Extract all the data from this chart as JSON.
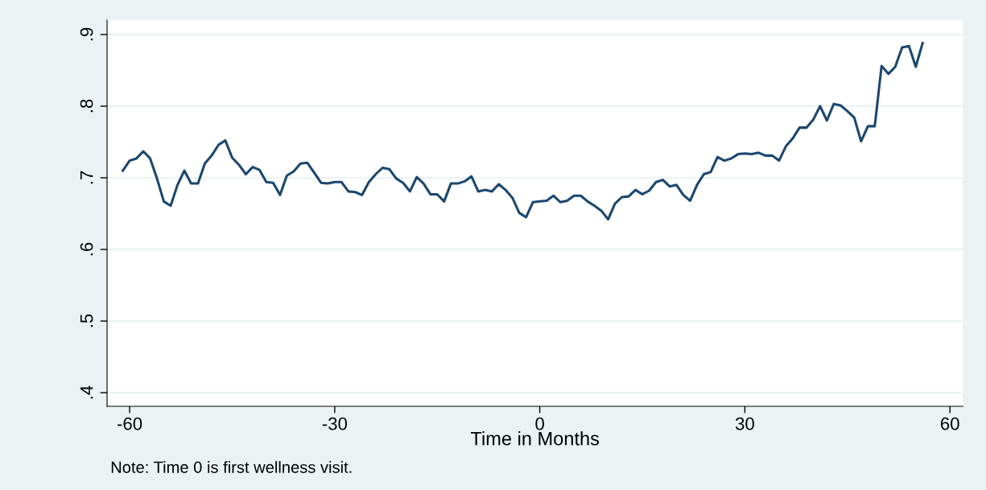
{
  "chart_data": {
    "type": "line",
    "xlabel": "Time in Months",
    "annotations": [
      "Note: Time 0 is first wellness visit."
    ],
    "x": [
      -61,
      -60,
      -59,
      -58,
      -57,
      -56,
      -55,
      -54,
      -53,
      -52,
      -51,
      -50,
      -49,
      -48,
      -47,
      -46,
      -45,
      -44,
      -43,
      -42,
      -41,
      -40,
      -39,
      -38,
      -37,
      -36,
      -35,
      -34,
      -33,
      -32,
      -31,
      -30,
      -29,
      -28,
      -27,
      -26,
      -25,
      -24,
      -23,
      -22,
      -21,
      -20,
      -19,
      -18,
      -17,
      -16,
      -15,
      -14,
      -13,
      -12,
      -11,
      -10,
      -9,
      -8,
      -7,
      -6,
      -5,
      -4,
      -3,
      -2,
      -1,
      0,
      1,
      2,
      3,
      4,
      5,
      6,
      7,
      8,
      9,
      10,
      11,
      12,
      13,
      14,
      15,
      16,
      17,
      18,
      19,
      20,
      21,
      22,
      23,
      24,
      25,
      26,
      27,
      28,
      29,
      30,
      31,
      32,
      33,
      34,
      35,
      36,
      37,
      38,
      39,
      40,
      41,
      42,
      43,
      44,
      45,
      46,
      47,
      48,
      49,
      50,
      51,
      52,
      53,
      54,
      55,
      56
    ],
    "series": [
      {
        "color": "#1a476f",
        "values": [
          0.71,
          0.724,
          0.727,
          0.737,
          0.727,
          0.699,
          0.667,
          0.661,
          0.69,
          0.71,
          0.692,
          0.692,
          0.72,
          0.731,
          0.746,
          0.752,
          0.728,
          0.718,
          0.705,
          0.715,
          0.711,
          0.694,
          0.693,
          0.676,
          0.703,
          0.709,
          0.72,
          0.721,
          0.707,
          0.693,
          0.692,
          0.694,
          0.694,
          0.681,
          0.68,
          0.676,
          0.694,
          0.705,
          0.714,
          0.712,
          0.699,
          0.693,
          0.681,
          0.701,
          0.692,
          0.677,
          0.677,
          0.667,
          0.692,
          0.692,
          0.695,
          0.702,
          0.681,
          0.683,
          0.681,
          0.691,
          0.683,
          0.672,
          0.651,
          0.645,
          0.666,
          0.667,
          0.668,
          0.675,
          0.666,
          0.668,
          0.675,
          0.675,
          0.667,
          0.661,
          0.654,
          0.642,
          0.664,
          0.673,
          0.674,
          0.683,
          0.677,
          0.682,
          0.694,
          0.697,
          0.688,
          0.69,
          0.676,
          0.668,
          0.69,
          0.705,
          0.708,
          0.729,
          0.724,
          0.727,
          0.733,
          0.734,
          0.733,
          0.735,
          0.731,
          0.731,
          0.724,
          0.744,
          0.755,
          0.77,
          0.77,
          0.781,
          0.8,
          0.78,
          0.803,
          0.801,
          0.793,
          0.784,
          0.751,
          0.772,
          0.772,
          0.856,
          0.845,
          0.855,
          0.882,
          0.884,
          0.855,
          0.888
        ]
      }
    ],
    "xlim": [
      -63.3,
      61.9
    ],
    "xticks": [
      -60,
      -30,
      0,
      30,
      60
    ],
    "ylim": [
      0.381,
      0.92
    ],
    "yticks": [
      {
        "value": 0.4,
        "label": ".4"
      },
      {
        "value": 0.5,
        "label": ".5"
      },
      {
        "value": 0.6,
        "label": ".6"
      },
      {
        "value": 0.7,
        "label": ".7"
      },
      {
        "value": 0.8,
        "label": ".8"
      },
      {
        "value": 0.9,
        "label": ".9"
      }
    ],
    "grid": "y",
    "legend": false,
    "marker": "none",
    "line_style": "solid"
  }
}
